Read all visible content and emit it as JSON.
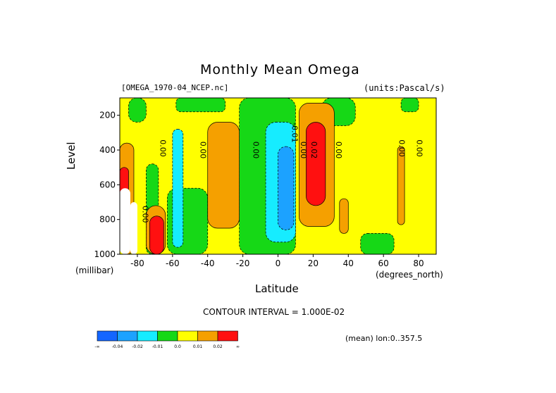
{
  "chart_data": {
    "type": "heatmap",
    "title": "Monthly Mean Omega",
    "file_label": "[OMEGA_1970-04_NCEP.nc]",
    "units_label": "(units:Pascal/s)",
    "xlabel": "Latitude",
    "x_units": "(degrees_north)",
    "ylabel": "Level",
    "y_units": "(millibar)",
    "xlim": [
      -90,
      90
    ],
    "ylim": [
      1000,
      100
    ],
    "x_ticks": [
      -80,
      -60,
      -40,
      -20,
      0,
      20,
      40,
      60,
      80
    ],
    "y_ticks": [
      200,
      400,
      600,
      800,
      1000
    ],
    "contour_interval_label": "CONTOUR INTERVAL = 1.000E-02",
    "mean_note": "(mean) lon:0..357.5",
    "contour_labels": [
      {
        "text": "0.00",
        "x": -77,
        "y": 770
      },
      {
        "text": "0.00",
        "x": -67,
        "y": 390
      },
      {
        "text": "0.00",
        "x": -44,
        "y": 400
      },
      {
        "text": "0.00",
        "x": -14,
        "y": 400
      },
      {
        "text": "-0.01",
        "x": 8,
        "y": 300
      },
      {
        "text": "0.00",
        "x": 13,
        "y": 400
      },
      {
        "text": "0.02",
        "x": 19,
        "y": 400
      },
      {
        "text": "0.00",
        "x": 33,
        "y": 400
      },
      {
        "text": "0.00",
        "x": 69,
        "y": 390
      },
      {
        "text": "0.00",
        "x": 79,
        "y": 390
      }
    ],
    "regions": [
      {
        "level": 0.0,
        "lat": [
          -90,
          90
        ],
        "p": [
          100,
          1000
        ]
      },
      {
        "level": -0.01,
        "lat": [
          -85,
          -75
        ],
        "p": [
          100,
          240
        ]
      },
      {
        "level": -0.01,
        "lat": [
          -58,
          -30
        ],
        "p": [
          100,
          180
        ]
      },
      {
        "level": -0.01,
        "lat": [
          -22,
          10
        ],
        "p": [
          100,
          1000
        ]
      },
      {
        "level": -0.01,
        "lat": [
          25,
          44
        ],
        "p": [
          100,
          260
        ]
      },
      {
        "level": -0.01,
        "lat": [
          -75,
          -68
        ],
        "p": [
          480,
          1000
        ]
      },
      {
        "level": -0.01,
        "lat": [
          -63,
          -40
        ],
        "p": [
          620,
          1000
        ]
      },
      {
        "level": -0.01,
        "lat": [
          70,
          80
        ],
        "p": [
          100,
          180
        ]
      },
      {
        "level": -0.01,
        "lat": [
          47,
          66
        ],
        "p": [
          880,
          1000
        ]
      },
      {
        "level": -0.02,
        "lat": [
          -60,
          -54
        ],
        "p": [
          280,
          960
        ]
      },
      {
        "level": -0.02,
        "lat": [
          -7,
          10
        ],
        "p": [
          240,
          930
        ]
      },
      {
        "level": -0.04,
        "lat": [
          0,
          9
        ],
        "p": [
          380,
          860
        ]
      },
      {
        "level": 0.01,
        "lat": [
          -40,
          -22
        ],
        "p": [
          240,
          850
        ]
      },
      {
        "level": 0.01,
        "lat": [
          12,
          32
        ],
        "p": [
          130,
          840
        ]
      },
      {
        "level": 0.01,
        "lat": [
          -90,
          -82
        ],
        "p": [
          360,
          1000
        ]
      },
      {
        "level": 0.01,
        "lat": [
          -75,
          -64
        ],
        "p": [
          720,
          1000
        ]
      },
      {
        "level": 0.01,
        "lat": [
          35,
          40
        ],
        "p": [
          680,
          880
        ]
      },
      {
        "level": 0.01,
        "lat": [
          68,
          72
        ],
        "p": [
          380,
          830
        ]
      },
      {
        "level": 0.02,
        "lat": [
          16,
          27
        ],
        "p": [
          240,
          720
        ]
      },
      {
        "level": 0.02,
        "lat": [
          -90,
          -85
        ],
        "p": [
          500,
          900
        ]
      },
      {
        "level": 0.02,
        "lat": [
          -73,
          -65
        ],
        "p": [
          780,
          1000
        ]
      },
      {
        "level": -99,
        "lat": [
          -90,
          -84
        ],
        "p": [
          620,
          1000
        ]
      },
      {
        "level": -99,
        "lat": [
          -84,
          -80
        ],
        "p": [
          700,
          1000
        ]
      }
    ]
  },
  "colorbar": {
    "bounds_labels": [
      "-0.04",
      "-0.02",
      "-0.01",
      "0.0",
      "0.01",
      "0.02"
    ],
    "end_left": "-∞",
    "end_right": "∞",
    "colors": [
      "#1466ff",
      "#1ca2ff",
      "#16ecff",
      "#16d816",
      "#ffff00",
      "#f5a000",
      "#ff1010"
    ]
  },
  "colors": {
    "lt_m04": "#1466ff",
    "m04_m02": "#1ca2ff",
    "m02_m01": "#16ecff",
    "m01_0": "#16d816",
    "0_p01": "#ffff00",
    "p01_p02": "#f5a000",
    "gt_p02": "#ff1010",
    "missing": "#ffffff"
  }
}
